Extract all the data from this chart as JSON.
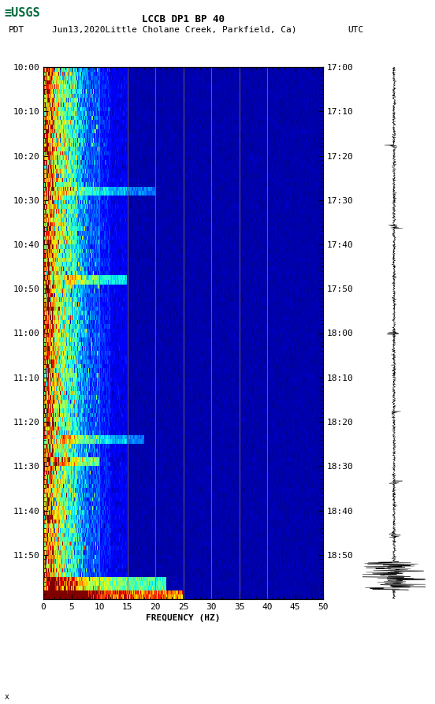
{
  "title_line1": "LCCB DP1 BP 40",
  "title_line2_left": "PDT",
  "title_line2_mid": "Jun13,2020Little Cholane Creek, Parkfield, Ca)",
  "title_line2_right": "UTC",
  "left_yticks": [
    "10:00",
    "10:10",
    "10:20",
    "10:30",
    "10:40",
    "10:50",
    "11:00",
    "11:10",
    "11:20",
    "11:30",
    "11:40",
    "11:50"
  ],
  "right_yticks": [
    "17:00",
    "17:10",
    "17:20",
    "17:30",
    "17:40",
    "17:50",
    "18:00",
    "18:10",
    "18:20",
    "18:30",
    "18:40",
    "18:50"
  ],
  "xticks": [
    0,
    5,
    10,
    15,
    20,
    25,
    30,
    35,
    40,
    45,
    50
  ],
  "xlabel": "FREQUENCY (HZ)",
  "freq_min": 0,
  "freq_max": 50,
  "time_steps": 120,
  "freq_steps": 400,
  "background_color": "#ffffff",
  "usgs_green": "#006b3c",
  "waterfall_vlines": [
    10,
    15,
    20,
    25,
    30,
    35,
    40
  ],
  "vline_color": "#8B7355",
  "fig_width": 5.52,
  "fig_height": 8.93
}
